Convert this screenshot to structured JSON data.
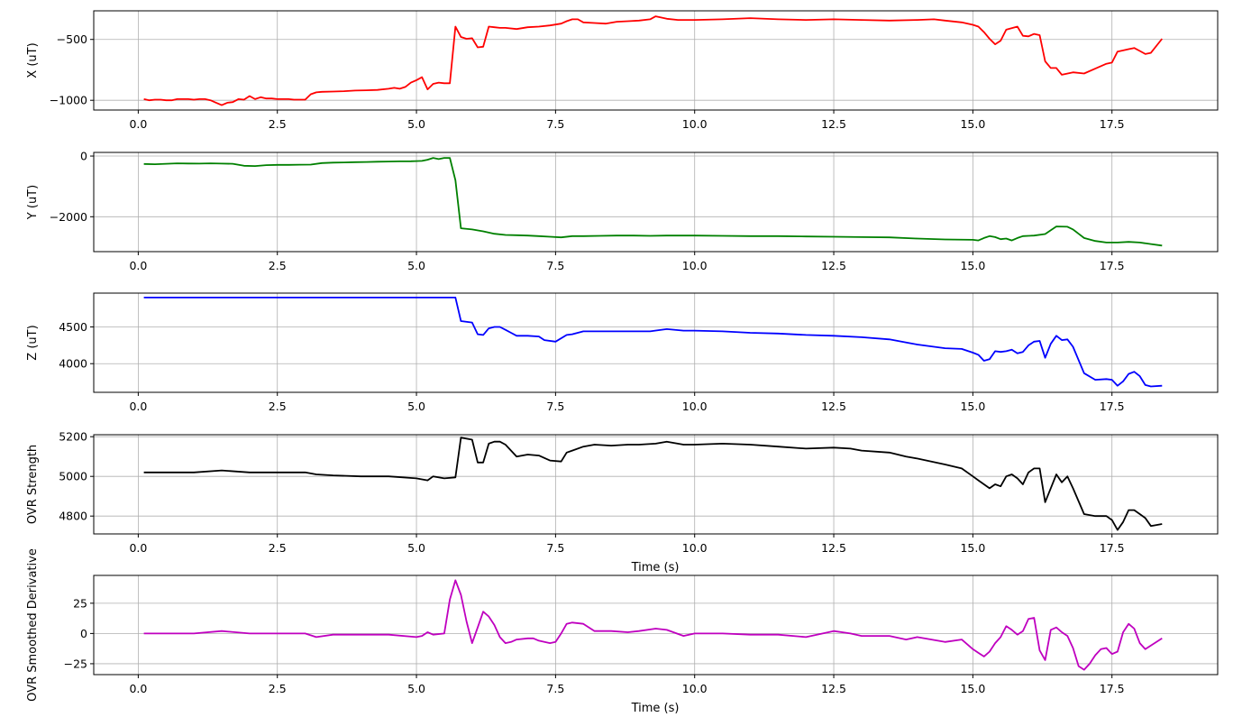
{
  "chart_data": [
    {
      "type": "line",
      "ylabel": "X (uT)",
      "xlabel": "",
      "color": "#ff0000",
      "xlim": [
        -0.8,
        19.4
      ],
      "ylim": [
        -1080,
        -265
      ],
      "xticks": [
        0.0,
        2.5,
        5.0,
        7.5,
        10.0,
        12.5,
        15.0,
        17.5
      ],
      "xtick_labels": [
        "0.0",
        "2.5",
        "5.0",
        "7.5",
        "10.0",
        "12.5",
        "15.0",
        "17.5"
      ],
      "yticks": [
        -1000,
        -500
      ],
      "ytick_labels": [
        "−1000",
        "−500"
      ],
      "grid": true,
      "x": [
        0.1,
        0.2,
        0.3,
        0.4,
        0.5,
        0.6,
        0.7,
        0.8,
        0.9,
        1.0,
        1.1,
        1.2,
        1.3,
        1.4,
        1.5,
        1.6,
        1.7,
        1.8,
        1.9,
        2.0,
        2.1,
        2.2,
        2.3,
        2.4,
        2.5,
        2.6,
        2.7,
        2.8,
        2.9,
        3.0,
        3.1,
        3.2,
        3.3,
        3.5,
        3.7,
        3.9,
        4.1,
        4.3,
        4.5,
        4.6,
        4.7,
        4.8,
        4.9,
        5.0,
        5.1,
        5.2,
        5.3,
        5.4,
        5.5,
        5.6,
        5.7,
        5.8,
        5.9,
        6.0,
        6.1,
        6.2,
        6.3,
        6.4,
        6.5,
        6.6,
        6.8,
        7.0,
        7.2,
        7.4,
        7.6,
        7.7,
        7.8,
        7.9,
        8.0,
        8.2,
        8.4,
        8.6,
        8.8,
        9.0,
        9.2,
        9.3,
        9.5,
        9.7,
        10.0,
        10.5,
        11.0,
        11.5,
        12.0,
        12.5,
        13.0,
        13.5,
        14.0,
        14.3,
        14.5,
        14.8,
        15.0,
        15.1,
        15.2,
        15.3,
        15.4,
        15.5,
        15.6,
        15.8,
        15.9,
        16.0,
        16.1,
        16.2,
        16.3,
        16.4,
        16.5,
        16.6,
        16.8,
        17.0,
        17.2,
        17.4,
        17.5,
        17.6,
        17.7,
        17.8,
        17.9,
        18.0,
        18.1,
        18.2,
        18.4
      ],
      "y": [
        -990,
        -1000,
        -995,
        -995,
        -1000,
        -1000,
        -990,
        -990,
        -990,
        -995,
        -990,
        -990,
        -1000,
        -1020,
        -1040,
        -1020,
        -1015,
        -990,
        -995,
        -965,
        -990,
        -975,
        -985,
        -985,
        -990,
        -990,
        -990,
        -995,
        -995,
        -995,
        -950,
        -935,
        -930,
        -928,
        -925,
        -920,
        -918,
        -915,
        -905,
        -898,
        -905,
        -890,
        -855,
        -835,
        -810,
        -910,
        -865,
        -855,
        -860,
        -860,
        -395,
        -480,
        -495,
        -490,
        -565,
        -560,
        -395,
        -400,
        -405,
        -405,
        -415,
        -400,
        -395,
        -385,
        -370,
        -350,
        -335,
        -335,
        -360,
        -365,
        -370,
        -355,
        -350,
        -345,
        -335,
        -310,
        -330,
        -340,
        -340,
        -335,
        -325,
        -335,
        -340,
        -335,
        -340,
        -345,
        -340,
        -335,
        -345,
        -360,
        -380,
        -395,
        -440,
        -495,
        -540,
        -510,
        -420,
        -395,
        -470,
        -475,
        -455,
        -465,
        -680,
        -735,
        -735,
        -790,
        -770,
        -780,
        -740,
        -700,
        -690,
        -600,
        -590,
        -580,
        -570,
        -595,
        -620,
        -610,
        -495
      ]
    },
    {
      "type": "line",
      "ylabel": "Y (uT)",
      "xlabel": "",
      "color": "#008000",
      "xlim": [
        -0.8,
        19.4
      ],
      "ylim": [
        -3150,
        120
      ],
      "xticks": [
        0.0,
        2.5,
        5.0,
        7.5,
        10.0,
        12.5,
        15.0,
        17.5
      ],
      "xtick_labels": [
        "0.0",
        "2.5",
        "5.0",
        "7.5",
        "10.0",
        "12.5",
        "15.0",
        "17.5"
      ],
      "yticks": [
        -2000,
        0
      ],
      "ytick_labels": [
        "−2000",
        "0"
      ],
      "grid": true,
      "x": [
        0.1,
        0.3,
        0.5,
        0.7,
        0.9,
        1.1,
        1.3,
        1.5,
        1.7,
        1.9,
        2.1,
        2.3,
        2.5,
        2.7,
        2.9,
        3.1,
        3.3,
        3.5,
        3.7,
        3.9,
        4.1,
        4.3,
        4.5,
        4.7,
        4.9,
        5.0,
        5.1,
        5.2,
        5.3,
        5.4,
        5.5,
        5.6,
        5.7,
        5.8,
        6.0,
        6.2,
        6.4,
        6.6,
        6.8,
        7.0,
        7.2,
        7.4,
        7.6,
        7.8,
        8.0,
        8.3,
        8.6,
        8.9,
        9.2,
        9.5,
        9.8,
        10.0,
        10.5,
        11.0,
        11.5,
        12.0,
        12.5,
        13.0,
        13.5,
        14.0,
        14.5,
        15.0,
        15.1,
        15.2,
        15.3,
        15.4,
        15.5,
        15.6,
        15.7,
        15.8,
        15.9,
        16.0,
        16.1,
        16.3,
        16.5,
        16.7,
        16.8,
        16.9,
        17.0,
        17.2,
        17.4,
        17.6,
        17.8,
        18.0,
        18.2,
        18.4
      ],
      "y": [
        -260,
        -270,
        -255,
        -240,
        -245,
        -250,
        -240,
        -250,
        -255,
        -320,
        -330,
        -300,
        -290,
        -290,
        -285,
        -280,
        -230,
        -215,
        -210,
        -200,
        -195,
        -185,
        -180,
        -175,
        -170,
        -165,
        -160,
        -120,
        -60,
        -100,
        -60,
        -60,
        -800,
        -2380,
        -2420,
        -2480,
        -2560,
        -2600,
        -2610,
        -2620,
        -2640,
        -2660,
        -2680,
        -2640,
        -2640,
        -2630,
        -2620,
        -2620,
        -2630,
        -2620,
        -2620,
        -2620,
        -2630,
        -2640,
        -2640,
        -2650,
        -2660,
        -2670,
        -2680,
        -2720,
        -2750,
        -2760,
        -2780,
        -2700,
        -2640,
        -2670,
        -2740,
        -2720,
        -2780,
        -2700,
        -2640,
        -2630,
        -2620,
        -2570,
        -2320,
        -2330,
        -2420,
        -2560,
        -2700,
        -2800,
        -2850,
        -2850,
        -2830,
        -2850,
        -2900,
        -2950
      ]
    },
    {
      "type": "line",
      "ylabel": "Z (uT)",
      "xlabel": "",
      "color": "#0000ff",
      "xlim": [
        -0.8,
        19.4
      ],
      "ylim": [
        3610,
        4960
      ],
      "xticks": [
        0.0,
        2.5,
        5.0,
        7.5,
        10.0,
        12.5,
        15.0,
        17.5
      ],
      "xtick_labels": [
        "0.0",
        "2.5",
        "5.0",
        "7.5",
        "10.0",
        "12.5",
        "15.0",
        "17.5"
      ],
      "yticks": [
        4000,
        4500
      ],
      "ytick_labels": [
        "4000",
        "4500"
      ],
      "grid": true,
      "x": [
        0.1,
        0.5,
        1.0,
        1.5,
        2.0,
        2.5,
        3.0,
        3.5,
        4.0,
        4.5,
        5.0,
        5.5,
        5.7,
        5.8,
        6.0,
        6.1,
        6.2,
        6.3,
        6.4,
        6.5,
        6.6,
        6.7,
        6.8,
        7.0,
        7.2,
        7.3,
        7.5,
        7.7,
        7.8,
        8.0,
        8.2,
        8.5,
        8.8,
        9.0,
        9.2,
        9.5,
        9.8,
        10.0,
        10.5,
        11.0,
        11.5,
        12.0,
        12.5,
        13.0,
        13.5,
        14.0,
        14.5,
        14.8,
        15.0,
        15.1,
        15.2,
        15.3,
        15.4,
        15.5,
        15.6,
        15.7,
        15.8,
        15.9,
        16.0,
        16.1,
        16.2,
        16.3,
        16.4,
        16.5,
        16.6,
        16.7,
        16.8,
        17.0,
        17.2,
        17.4,
        17.5,
        17.6,
        17.7,
        17.8,
        17.9,
        18.0,
        18.1,
        18.2,
        18.4
      ],
      "y": [
        4900,
        4900,
        4900,
        4900,
        4900,
        4900,
        4900,
        4900,
        4900,
        4900,
        4900,
        4900,
        4900,
        4580,
        4560,
        4400,
        4390,
        4480,
        4500,
        4500,
        4460,
        4420,
        4380,
        4380,
        4370,
        4320,
        4300,
        4390,
        4400,
        4440,
        4440,
        4440,
        4440,
        4440,
        4440,
        4470,
        4450,
        4450,
        4440,
        4420,
        4410,
        4390,
        4380,
        4360,
        4330,
        4260,
        4210,
        4200,
        4150,
        4120,
        4040,
        4060,
        4170,
        4160,
        4170,
        4190,
        4140,
        4160,
        4250,
        4300,
        4310,
        4080,
        4270,
        4380,
        4320,
        4330,
        4230,
        3870,
        3780,
        3790,
        3780,
        3700,
        3760,
        3860,
        3890,
        3830,
        3710,
        3690,
        3700
      ]
    },
    {
      "type": "line",
      "ylabel": "OVR Strength",
      "xlabel": "Time (s)",
      "color": "#000000",
      "xlim": [
        -0.8,
        19.4
      ],
      "ylim": [
        4710,
        5210
      ],
      "xticks": [
        0.0,
        2.5,
        5.0,
        7.5,
        10.0,
        12.5,
        15.0,
        17.5
      ],
      "xtick_labels": [
        "0.0",
        "2.5",
        "5.0",
        "7.5",
        "10.0",
        "12.5",
        "15.0",
        "17.5"
      ],
      "yticks": [
        4800,
        5000,
        5200
      ],
      "ytick_labels": [
        "4800",
        "5000",
        "5200"
      ],
      "grid": true,
      "x": [
        0.1,
        0.5,
        1.0,
        1.5,
        2.0,
        2.5,
        3.0,
        3.2,
        3.5,
        4.0,
        4.5,
        5.0,
        5.2,
        5.3,
        5.5,
        5.7,
        5.8,
        6.0,
        6.1,
        6.2,
        6.3,
        6.4,
        6.5,
        6.6,
        6.8,
        7.0,
        7.2,
        7.4,
        7.6,
        7.7,
        7.8,
        8.0,
        8.2,
        8.5,
        8.8,
        9.0,
        9.3,
        9.5,
        9.8,
        10.0,
        10.5,
        11.0,
        11.5,
        12.0,
        12.5,
        12.8,
        13.0,
        13.5,
        13.8,
        14.0,
        14.5,
        14.8,
        15.0,
        15.1,
        15.2,
        15.3,
        15.4,
        15.5,
        15.6,
        15.7,
        15.8,
        15.9,
        16.0,
        16.1,
        16.2,
        16.3,
        16.4,
        16.5,
        16.6,
        16.7,
        16.8,
        17.0,
        17.2,
        17.4,
        17.5,
        17.6,
        17.7,
        17.8,
        17.9,
        18.0,
        18.1,
        18.2,
        18.4
      ],
      "y": [
        5020,
        5020,
        5020,
        5030,
        5020,
        5020,
        5020,
        5010,
        5005,
        5000,
        5000,
        4990,
        4980,
        5000,
        4990,
        4995,
        5195,
        5185,
        5070,
        5070,
        5165,
        5175,
        5175,
        5160,
        5100,
        5110,
        5105,
        5080,
        5075,
        5120,
        5130,
        5150,
        5160,
        5155,
        5160,
        5160,
        5165,
        5175,
        5160,
        5160,
        5165,
        5160,
        5150,
        5140,
        5145,
        5140,
        5130,
        5120,
        5100,
        5090,
        5060,
        5040,
        5000,
        4980,
        4960,
        4940,
        4960,
        4950,
        5000,
        5010,
        4990,
        4960,
        5020,
        5040,
        5040,
        4870,
        4940,
        5010,
        4970,
        5000,
        4940,
        4810,
        4800,
        4800,
        4780,
        4730,
        4770,
        4830,
        4830,
        4810,
        4790,
        4750,
        4760
      ]
    },
    {
      "type": "line",
      "ylabel": "OVR Smoothed Derivative",
      "xlabel": "Time (s)",
      "color": "#bf00bf",
      "xlim": [
        -0.8,
        19.4
      ],
      "ylim": [
        -34,
        48
      ],
      "xticks": [
        0.0,
        2.5,
        5.0,
        7.5,
        10.0,
        12.5,
        15.0,
        17.5
      ],
      "xtick_labels": [
        "0.0",
        "2.5",
        "5.0",
        "7.5",
        "10.0",
        "12.5",
        "15.0",
        "17.5"
      ],
      "yticks": [
        -25,
        0,
        25
      ],
      "ytick_labels": [
        "−25",
        "0",
        "25"
      ],
      "grid": true,
      "x": [
        0.1,
        0.5,
        1.0,
        1.5,
        2.0,
        2.5,
        3.0,
        3.2,
        3.5,
        4.0,
        4.5,
        5.0,
        5.1,
        5.2,
        5.3,
        5.5,
        5.6,
        5.7,
        5.8,
        5.9,
        6.0,
        6.1,
        6.2,
        6.3,
        6.4,
        6.5,
        6.6,
        6.7,
        6.8,
        7.0,
        7.1,
        7.2,
        7.4,
        7.5,
        7.6,
        7.7,
        7.8,
        8.0,
        8.2,
        8.5,
        8.8,
        9.0,
        9.3,
        9.5,
        9.8,
        10.0,
        10.5,
        11.0,
        11.5,
        12.0,
        12.5,
        12.8,
        13.0,
        13.5,
        13.8,
        14.0,
        14.5,
        14.8,
        15.0,
        15.1,
        15.2,
        15.3,
        15.4,
        15.5,
        15.6,
        15.7,
        15.8,
        15.9,
        16.0,
        16.1,
        16.2,
        16.3,
        16.4,
        16.5,
        16.6,
        16.7,
        16.8,
        16.9,
        17.0,
        17.1,
        17.2,
        17.3,
        17.4,
        17.5,
        17.6,
        17.7,
        17.8,
        17.9,
        18.0,
        18.1,
        18.2,
        18.4
      ],
      "y": [
        0,
        0,
        0,
        2,
        0,
        0,
        0,
        -3,
        -1,
        -1,
        -1,
        -3,
        -2,
        1,
        -1,
        0,
        28,
        44,
        32,
        10,
        -8,
        5,
        18,
        14,
        7,
        -3,
        -8,
        -7,
        -5,
        -4,
        -4,
        -6,
        -8,
        -7,
        0,
        8,
        9,
        8,
        2,
        2,
        1,
        2,
        4,
        3,
        -2,
        0,
        0,
        -1,
        -1,
        -3,
        2,
        0,
        -2,
        -2,
        -5,
        -3,
        -7,
        -5,
        -13,
        -16,
        -19,
        -15,
        -8,
        -3,
        6,
        3,
        -1,
        2,
        12,
        13,
        -14,
        -22,
        3,
        5,
        1,
        -2,
        -12,
        -27,
        -30,
        -25,
        -18,
        -13,
        -12,
        -17,
        -15,
        1,
        8,
        4,
        -8,
        -13,
        -10,
        -4
      ]
    }
  ]
}
